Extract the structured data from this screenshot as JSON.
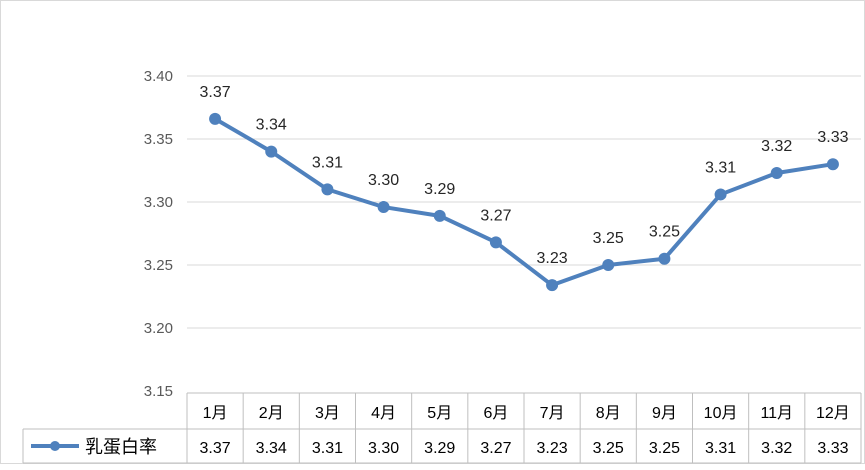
{
  "chart_data": {
    "type": "line",
    "categories": [
      "1月",
      "2月",
      "3月",
      "4月",
      "5月",
      "6月",
      "7月",
      "8月",
      "9月",
      "10月",
      "11月",
      "12月"
    ],
    "series": [
      {
        "name": "乳蛋白率",
        "values": [
          3.366,
          3.34,
          3.31,
          3.296,
          3.289,
          3.268,
          3.234,
          3.25,
          3.255,
          3.306,
          3.323,
          3.33
        ],
        "labels": [
          "3.37",
          "3.34",
          "3.31",
          "3.30",
          "3.29",
          "3.27",
          "3.23",
          "3.25",
          "3.25",
          "3.31",
          "3.32",
          "3.33"
        ],
        "color": "#4f81bd"
      }
    ],
    "y_ticks": [
      "3.40",
      "3.35",
      "3.30",
      "3.25",
      "3.20",
      "3.15"
    ],
    "ylim": [
      3.15,
      3.4
    ],
    "grid": true,
    "legend": "data-table-left",
    "data_table": true
  }
}
